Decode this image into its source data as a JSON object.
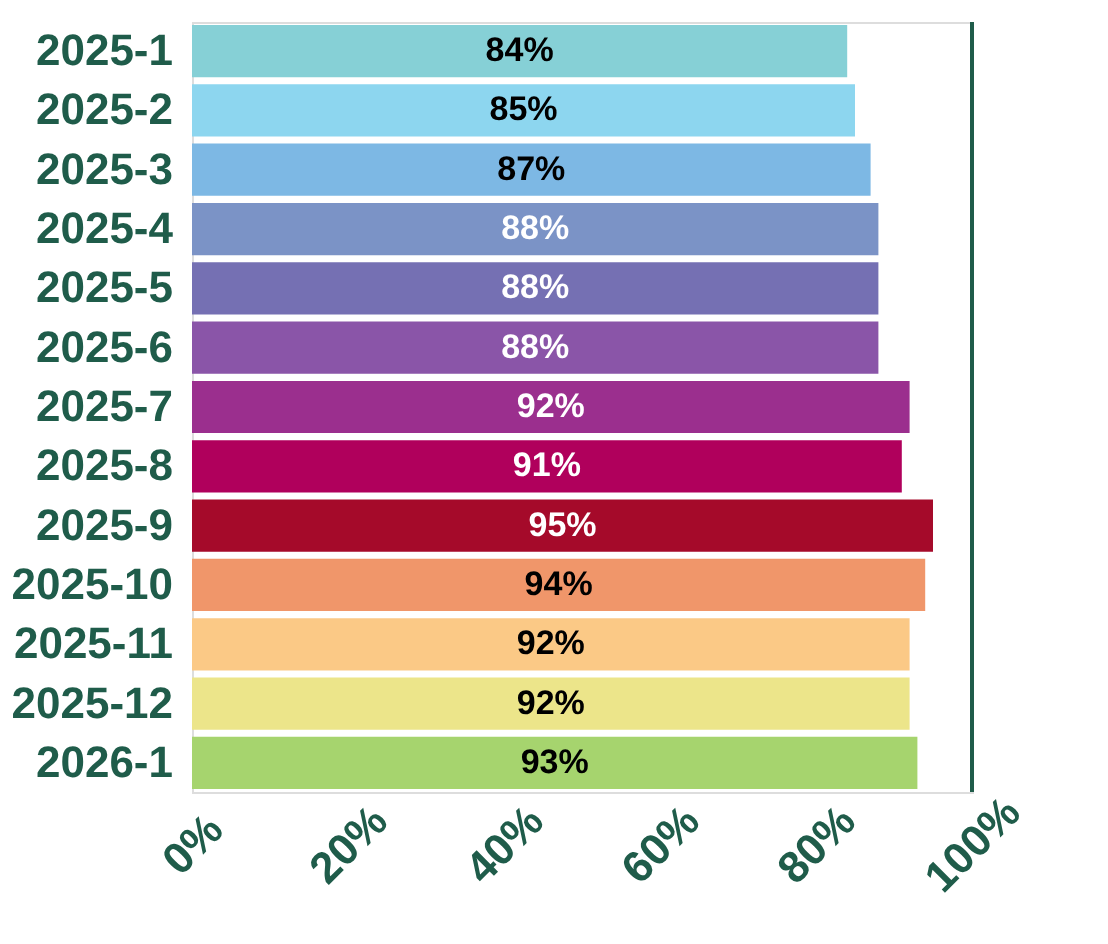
{
  "chart_data": {
    "type": "bar",
    "orientation": "horizontal",
    "categories": [
      "2025-1",
      "2025-2",
      "2025-3",
      "2025-4",
      "2025-5",
      "2025-6",
      "2025-7",
      "2025-8",
      "2025-9",
      "2025-10",
      "2025-11",
      "2025-12",
      "2026-1"
    ],
    "values": [
      84,
      85,
      87,
      88,
      88,
      88,
      92,
      91,
      95,
      94,
      92,
      92,
      93
    ],
    "value_labels": [
      "84%",
      "85%",
      "87%",
      "88%",
      "88%",
      "88%",
      "92%",
      "91%",
      "95%",
      "94%",
      "92%",
      "92%",
      "93%"
    ],
    "colors": [
      "#86d0d6",
      "#8dd6ef",
      "#7db8e4",
      "#7b93c6",
      "#7570b3",
      "#8a55a8",
      "#9b2f8e",
      "#b0005c",
      "#a50a2a",
      "#f0966a",
      "#fbc986",
      "#ece58a",
      "#a6d46e"
    ],
    "xlim": [
      0,
      100
    ],
    "xticks": [
      {
        "value": 0,
        "label": "0%"
      },
      {
        "value": 20,
        "label": "20%"
      },
      {
        "value": 40,
        "label": "40%"
      },
      {
        "value": 60,
        "label": "60%"
      },
      {
        "value": 80,
        "label": "80%"
      },
      {
        "value": 100,
        "label": "100%"
      }
    ],
    "ref_lines": [
      {
        "axis": "x",
        "value": 100,
        "label": null,
        "color": "#1f5c4a"
      }
    ],
    "grid": false
  }
}
